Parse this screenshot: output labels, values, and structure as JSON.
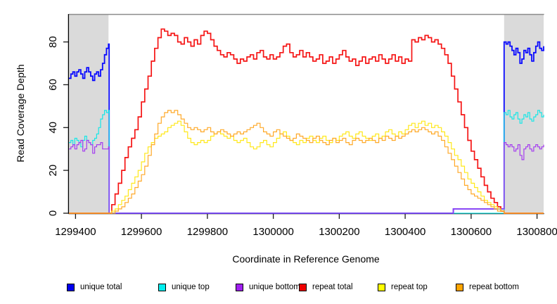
{
  "chart_data": {
    "type": "line",
    "title": "",
    "xlabel": "Coordinate in Reference Genome",
    "ylabel": "Read Coverage Depth",
    "xlim": [
      1299380,
      1300820
    ],
    "ylim": [
      0,
      93
    ],
    "x_ticks": [
      1299400,
      1299600,
      1299800,
      1300000,
      1300200,
      1300400,
      1300600,
      1300800
    ],
    "y_ticks": [
      0,
      20,
      40,
      60,
      80
    ],
    "grid": false,
    "legend_position": "bottom-horizontal",
    "interpolation": "step",
    "background_color": "#FFFFFF",
    "shade_color": "#DADADA",
    "shaded_regions": [
      {
        "x0": 1299380,
        "x1": 1299500
      },
      {
        "x0": 1300700,
        "x1": 1300820
      }
    ],
    "series": [
      {
        "id": "unique-total",
        "label": "unique total",
        "color": "#0000EE",
        "line_color": "#0A0AFF",
        "line_width": 1.8,
        "segments": [
          {
            "x0": 1299380,
            "dx": 6,
            "y": [
              63,
              65,
              66,
              64,
              66,
              67,
              65,
              63,
              66,
              68,
              66,
              64,
              62,
              65,
              66,
              64,
              67,
              70,
              74,
              77,
              79
            ]
          },
          {
            "x0": 1299502,
            "dx": 1042,
            "y": [
              0,
              0
            ]
          },
          {
            "x0": 1300546,
            "dx": 150,
            "y": [
              2,
              2
            ]
          },
          {
            "x0": 1300700,
            "dx": 6,
            "y": [
              80,
              79,
              80,
              78,
              76,
              74,
              77,
              75,
              70,
              72,
              76,
              75,
              77,
              74,
              71,
              75,
              78,
              80,
              77,
              76,
              78
            ]
          }
        ]
      },
      {
        "id": "unique-top",
        "label": "unique top",
        "color": "#00EEEE",
        "line_color": "#17E7E7",
        "line_width": 1.2,
        "segments": [
          {
            "x0": 1299380,
            "dx": 6,
            "y": [
              33,
              34,
              32,
              35,
              34,
              33,
              31,
              34,
              36,
              34,
              33,
              32,
              34,
              35,
              37,
              40,
              44,
              46,
              48,
              47,
              48
            ]
          },
          {
            "x0": 1299502,
            "dx": 1194,
            "y": [
              0,
              0
            ]
          },
          {
            "x0": 1300700,
            "dx": 6,
            "y": [
              47,
              46,
              48,
              45,
              44,
              46,
              47,
              44,
              42,
              44,
              46,
              45,
              47,
              44,
              43,
              45,
              46,
              48,
              47,
              45,
              46
            ]
          }
        ]
      },
      {
        "id": "unique-bottom",
        "label": "unique bottom",
        "color": "#A020F0",
        "line_color": "#A43CF0",
        "line_width": 1.2,
        "segments": [
          {
            "x0": 1299380,
            "dx": 6,
            "y": [
              30,
              31,
              32,
              30,
              32,
              33,
              34,
              29,
              30,
              34,
              33,
              32,
              28,
              31,
              32,
              32,
              33,
              30,
              30,
              30,
              31
            ]
          },
          {
            "x0": 1299502,
            "dx": 1042,
            "y": [
              0,
              0
            ]
          },
          {
            "x0": 1300546,
            "dx": 150,
            "y": [
              2,
              2
            ]
          },
          {
            "x0": 1300700,
            "dx": 6,
            "y": [
              33,
              32,
              31,
              32,
              31,
              29,
              30,
              32,
              27,
              25,
              30,
              31,
              32,
              30,
              29,
              31,
              32,
              31,
              30,
              31,
              32
            ]
          }
        ]
      },
      {
        "id": "repeat-total",
        "label": "repeat total",
        "color": "#EE0000",
        "line_color": "#F51414",
        "line_width": 1.7,
        "segments": [
          {
            "x0": 1299380,
            "dx": 118,
            "y": [
              0,
              0
            ]
          },
          {
            "x0": 1299500,
            "dx": 10,
            "y": [
              0,
              4,
              9,
              14,
              20,
              26,
              31,
              35,
              39,
              45,
              52,
              58,
              64,
              71,
              77,
              82,
              86,
              85,
              83,
              84,
              83,
              80,
              79,
              82,
              80,
              78,
              81,
              79,
              83,
              85,
              84,
              81,
              78,
              76,
              74,
              73,
              75,
              74,
              72,
              70,
              72,
              71,
              73,
              74,
              72,
              75,
              76,
              73,
              72,
              74,
              72,
              73,
              75,
              78,
              79,
              75,
              73,
              74,
              76,
              73,
              75,
              73,
              71,
              72,
              74,
              70,
              71,
              73,
              70,
              72,
              74,
              76,
              73,
              71,
              72,
              69,
              71,
              73,
              70,
              72,
              73,
              71,
              74,
              72,
              70,
              72,
              74,
              71,
              73,
              70,
              72,
              71,
              81,
              80,
              82,
              81,
              83,
              82,
              80,
              81,
              79,
              77,
              74,
              70,
              64,
              58,
              52,
              46,
              40,
              34,
              29,
              25,
              21,
              17,
              13,
              10,
              7,
              5,
              3,
              1,
              0
            ]
          },
          {
            "x0": 1300702,
            "dx": 118,
            "y": [
              0,
              0
            ]
          }
        ]
      },
      {
        "id": "repeat-top",
        "label": "repeat top",
        "color": "#FFFF00",
        "line_color": "#FFE81A",
        "line_width": 1.2,
        "segments": [
          {
            "x0": 1299380,
            "dx": 118,
            "y": [
              0,
              0
            ]
          },
          {
            "x0": 1299500,
            "dx": 10,
            "y": [
              0,
              1,
              2,
              4,
              6,
              8,
              11,
              14,
              17,
              20,
              24,
              28,
              31,
              33,
              35,
              36,
              37,
              38,
              40,
              41,
              42,
              43,
              41,
              38,
              35,
              33,
              32,
              33,
              34,
              33,
              34,
              36,
              37,
              38,
              37,
              36,
              35,
              36,
              34,
              33,
              34,
              35,
              33,
              31,
              30,
              31,
              33,
              34,
              32,
              31,
              33,
              35,
              37,
              38,
              36,
              34,
              33,
              32,
              34,
              33,
              35,
              36,
              34,
              33,
              35,
              36,
              34,
              33,
              35,
              34,
              36,
              37,
              38,
              36,
              35,
              37,
              38,
              36,
              35,
              34,
              36,
              37,
              35,
              36,
              38,
              39,
              37,
              36,
              38,
              37,
              39,
              41,
              42,
              40,
              42,
              43,
              41,
              42,
              40,
              41,
              40,
              38,
              36,
              33,
              30,
              27,
              25,
              22,
              19,
              16,
              14,
              12,
              10,
              8,
              6,
              5,
              4,
              3,
              2,
              1,
              0
            ]
          },
          {
            "x0": 1300702,
            "dx": 118,
            "y": [
              0,
              0
            ]
          }
        ]
      },
      {
        "id": "repeat-bottom",
        "label": "repeat bottom",
        "color": "#FFA500",
        "line_color": "#FFA928",
        "line_width": 1.2,
        "segments": [
          {
            "x0": 1299380,
            "dx": 118,
            "y": [
              0,
              0
            ]
          },
          {
            "x0": 1299500,
            "dx": 10,
            "y": [
              0,
              0,
              1,
              2,
              3,
              5,
              7,
              9,
              12,
              15,
              18,
              22,
              27,
              32,
              37,
              42,
              45,
              47,
              48,
              47,
              48,
              46,
              44,
              42,
              40,
              39,
              40,
              39,
              38,
              39,
              40,
              38,
              37,
              38,
              39,
              38,
              37,
              36,
              37,
              38,
              37,
              38,
              39,
              40,
              41,
              42,
              40,
              38,
              37,
              36,
              38,
              39,
              37,
              36,
              35,
              34,
              35,
              37,
              36,
              35,
              34,
              33,
              35,
              36,
              34,
              33,
              32,
              34,
              35,
              33,
              34,
              35,
              33,
              32,
              34,
              35,
              34,
              33,
              34,
              35,
              34,
              33,
              35,
              34,
              36,
              35,
              34,
              36,
              35,
              36,
              37,
              38,
              39,
              38,
              39,
              40,
              39,
              38,
              37,
              38,
              36,
              34,
              31,
              28,
              25,
              22,
              19,
              16,
              13,
              11,
              9,
              8,
              7,
              6,
              5,
              4,
              3,
              2,
              1,
              1,
              0
            ]
          },
          {
            "x0": 1300702,
            "dx": 118,
            "y": [
              0,
              0
            ]
          }
        ]
      }
    ]
  }
}
